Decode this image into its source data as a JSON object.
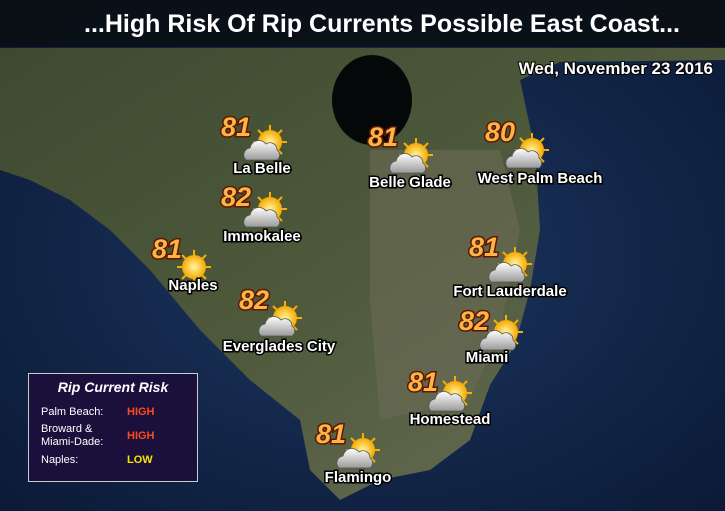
{
  "header": {
    "title": "...High Risk Of Rip Currents Possible East Coast...",
    "date": "Wed, November 23 2016"
  },
  "cities": [
    {
      "name": "La Belle",
      "temp": 81
    },
    {
      "name": "Belle Glade",
      "temp": 81
    },
    {
      "name": "West Palm Beach",
      "temp": 80
    },
    {
      "name": "Immokalee",
      "temp": 82
    },
    {
      "name": "Naples",
      "temp": 81
    },
    {
      "name": "Fort Lauderdale",
      "temp": 81
    },
    {
      "name": "Everglades City",
      "temp": 82
    },
    {
      "name": "Miami",
      "temp": 82
    },
    {
      "name": "Homestead",
      "temp": 81
    },
    {
      "name": "Flamingo",
      "temp": 81
    }
  ],
  "legend": {
    "title": "Rip Current Risk",
    "rows": [
      {
        "area": "Palm Beach:",
        "risk": "HIGH"
      },
      {
        "area": "Broward & Miami-Dade:",
        "risk": "HIGH"
      },
      {
        "area": "Naples:",
        "risk": "LOW"
      }
    ]
  }
}
